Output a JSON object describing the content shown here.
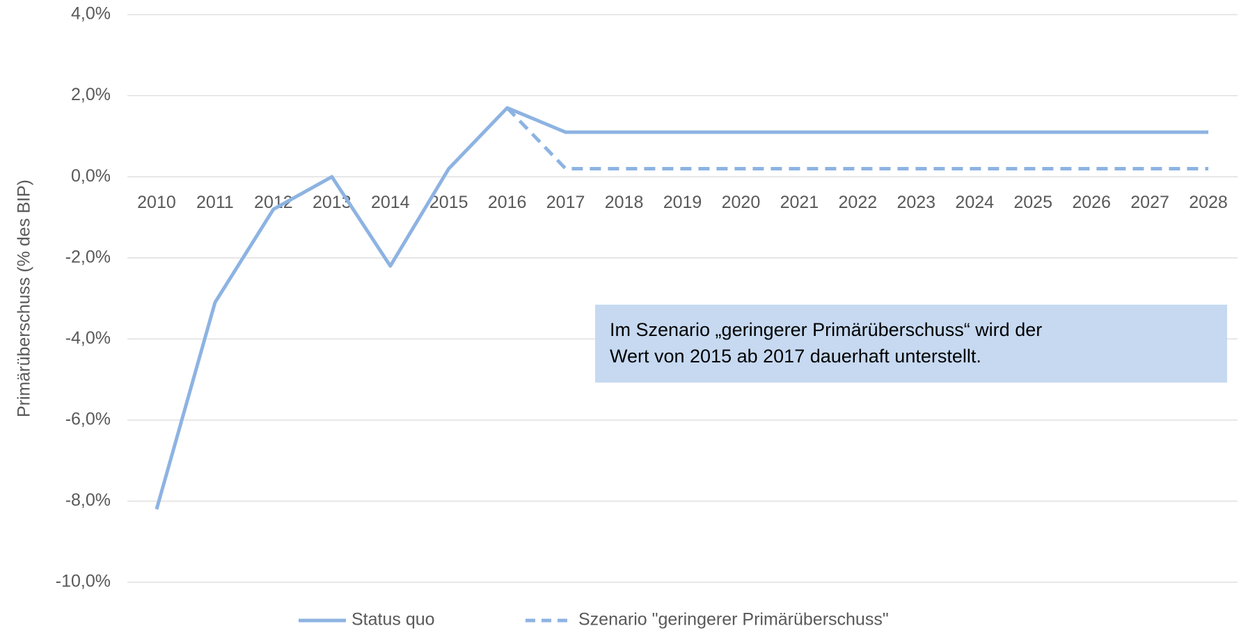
{
  "chart_data": {
    "type": "line",
    "y_label": "Primärüberschuss (% des BIP)",
    "categories": [
      "2010",
      "2011",
      "2012",
      "2013",
      "2014",
      "2015",
      "2016",
      "2017",
      "2018",
      "2019",
      "2020",
      "2021",
      "2022",
      "2023",
      "2024",
      "2025",
      "2026",
      "2027",
      "2028"
    ],
    "series": [
      {
        "name": "Status quo",
        "color": "#8db3e2",
        "dash": false,
        "values": [
          -8.2,
          -3.1,
          -0.8,
          0.0,
          -2.2,
          0.2,
          1.7,
          1.1,
          1.1,
          1.1,
          1.1,
          1.1,
          1.1,
          1.1,
          1.1,
          1.1,
          1.1,
          1.1,
          1.1
        ]
      },
      {
        "name": "Szenario \"geringerer Primärüberschuss\"",
        "color": "#8db3e2",
        "dash": true,
        "values": [
          null,
          null,
          null,
          null,
          null,
          null,
          1.7,
          0.2,
          0.2,
          0.2,
          0.2,
          0.2,
          0.2,
          0.2,
          0.2,
          0.2,
          0.2,
          0.2,
          0.2
        ]
      }
    ],
    "ylim": [
      -10,
      4
    ],
    "yticks": [
      {
        "value": -10,
        "label": "-10,0%"
      },
      {
        "value": -8,
        "label": "-8,0%"
      },
      {
        "value": -6,
        "label": "-6,0%"
      },
      {
        "value": -4,
        "label": "-4,0%"
      },
      {
        "value": -2,
        "label": "-2,0%"
      },
      {
        "value": 0,
        "label": "0,0%"
      },
      {
        "value": 2,
        "label": "2,0%"
      },
      {
        "value": 4,
        "label": "4,0%"
      }
    ],
    "grid": true,
    "legend": "bottom",
    "annotation": [
      "Im Szenario „geringerer Primärüberschuss“ wird der",
      "Wert von 2015 ab 2017 dauerhaft unterstellt."
    ],
    "annotation_color": "#c6d9f1"
  }
}
